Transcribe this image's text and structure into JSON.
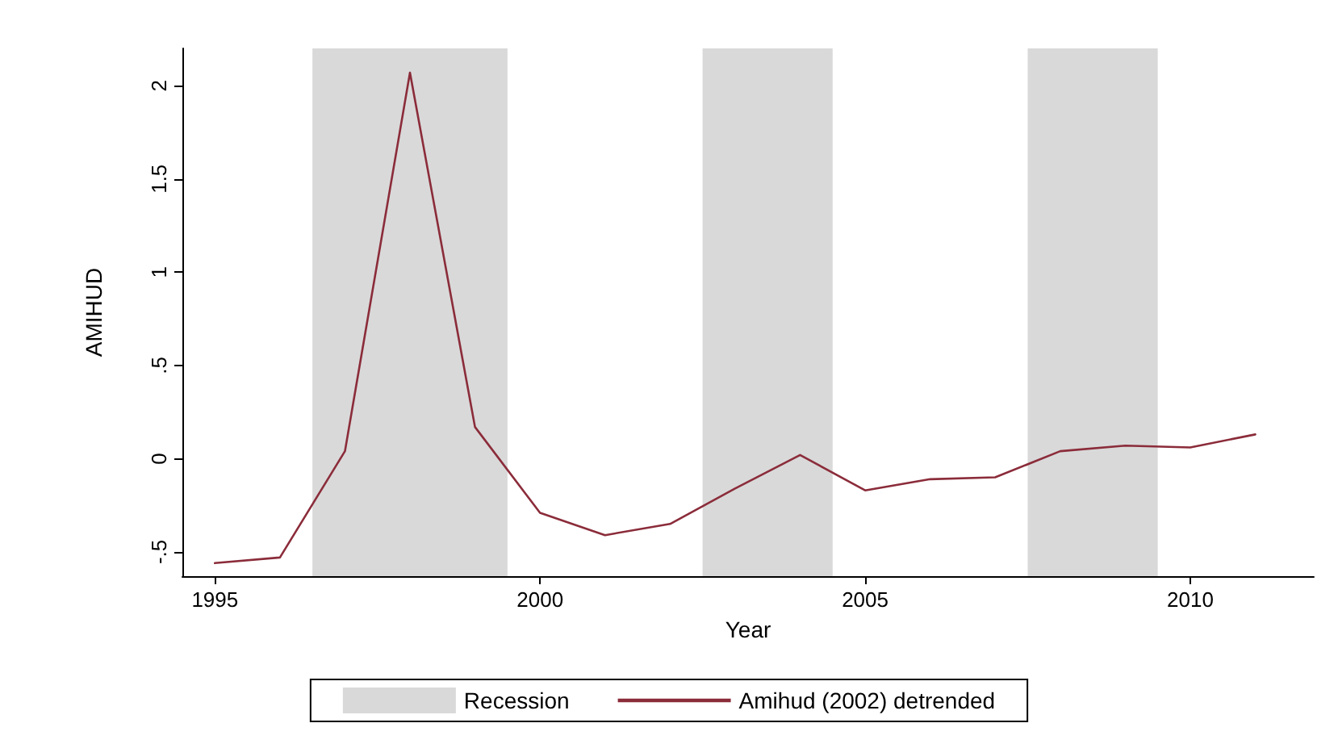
{
  "chart_data": {
    "type": "line",
    "xlabel": "Year",
    "ylabel": "AMIHUD",
    "x": [
      1995,
      1996,
      1997,
      1998,
      1999,
      2000,
      2001,
      2002,
      2003,
      2004,
      2005,
      2006,
      2007,
      2008,
      2009,
      2010,
      2011
    ],
    "series": [
      {
        "name": "Amihud (2002) detrended",
        "color": "#8b2c3a",
        "values": [
          -0.56,
          -0.53,
          0.04,
          2.07,
          0.17,
          -0.29,
          -0.41,
          -0.35,
          -0.16,
          0.02,
          -0.17,
          -0.11,
          -0.1,
          0.04,
          0.07,
          0.06,
          0.13
        ]
      }
    ],
    "bands": [
      {
        "axis": "x",
        "from": 1996.5,
        "to": 1999.5,
        "label": "Recession",
        "color": "#d9d9d9"
      },
      {
        "axis": "x",
        "from": 2002.5,
        "to": 2004.5,
        "color": "#d9d9d9"
      },
      {
        "axis": "x",
        "from": 2007.5,
        "to": 2009.5,
        "color": "#d9d9d9"
      }
    ],
    "xlim": [
      1994.5,
      2011.9
    ],
    "xticks": [
      1995,
      2000,
      2005,
      2010
    ],
    "ylim": [
      -0.63,
      2.2
    ],
    "yticks": [
      {
        "value": -0.5,
        "label": "-.5"
      },
      0,
      {
        "value": 0.5,
        "label": ".5"
      },
      1,
      1.5,
      2
    ],
    "grid": false,
    "legend": "bottom",
    "marker": "none",
    "line_style": "solid"
  }
}
